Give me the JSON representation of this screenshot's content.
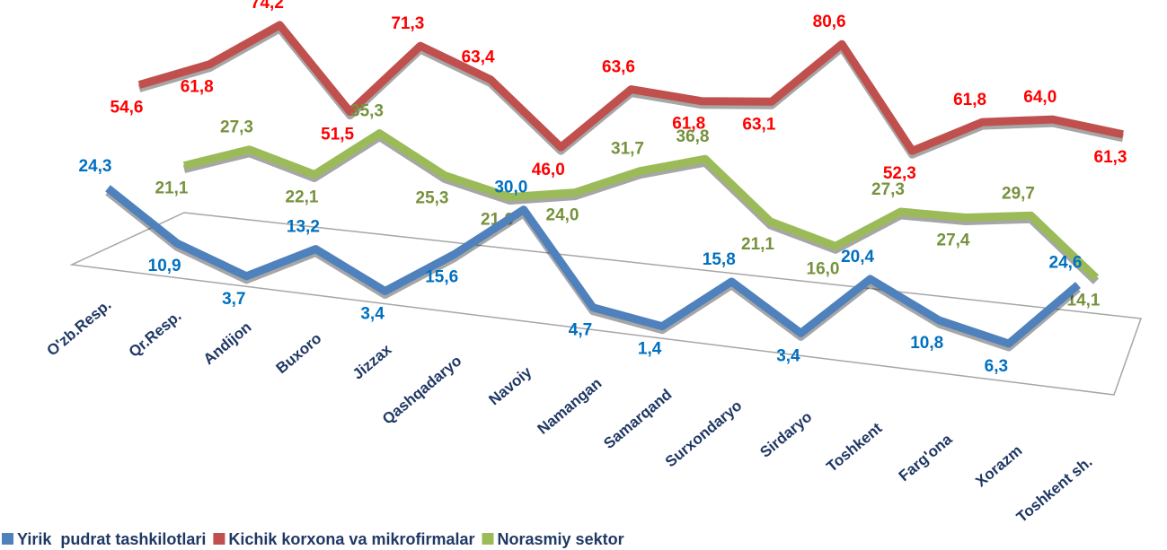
{
  "chart_data": {
    "type": "line",
    "categories": [
      "O'zb.Resp.",
      "Qr.Resp.",
      "Andijon",
      "Buxoro",
      "Jizzax",
      "Qashqadaryo",
      "Navoiy",
      "Namangan",
      "Samarqand",
      "Surxondaryo",
      "Sirdaryo",
      "Toshkent",
      "Farg'ona",
      "Xorazm",
      "Toshkent sh."
    ],
    "series": [
      {
        "name": "Yirik  pudrat tashkilotlari",
        "color": "#4f81bd",
        "label_color": "#0070c0",
        "values": [
          24.3,
          10.9,
          3.7,
          13.2,
          3.4,
          15.6,
          30.0,
          4.7,
          1.4,
          15.8,
          3.4,
          20.4,
          10.8,
          6.3,
          24.6
        ],
        "value_labels": [
          "24,3",
          "10,9",
          "3,7",
          "13,2",
          "3,4",
          "15,6",
          "30,0",
          "4,7",
          "1,4",
          "15,8",
          "3,4",
          "20,4",
          "10,8",
          "6,3",
          "24,6"
        ]
      },
      {
        "name": "Kichik korxona va mikrofirmalar",
        "color": "#c0504d",
        "label_color": "#ff0000",
        "values": [
          54.6,
          61.8,
          74.2,
          51.5,
          71.3,
          63.4,
          46.0,
          63.6,
          61.8,
          63.1,
          80.6,
          52.3,
          61.8,
          64.0,
          61.3
        ],
        "value_labels": [
          "54,6",
          "61,8",
          "74,2",
          "51,5",
          "71,3",
          "63,4",
          "46,0",
          "63,6",
          "61,8",
          "63,1",
          "80,6",
          "52,3",
          "61,8",
          "64,0",
          "61,3"
        ]
      },
      {
        "name": "Norasmiy sektor",
        "color": "#9bbb59",
        "label_color": "#76923c",
        "values": [
          21.1,
          27.3,
          22.1,
          35.3,
          25.3,
          21.0,
          24.0,
          31.7,
          36.8,
          21.1,
          16.0,
          27.3,
          27.4,
          29.7,
          14.1
        ],
        "value_labels": [
          "21,1",
          "27,3",
          "22,1",
          "35,3",
          "25,3",
          "21,0",
          "24,0",
          "31,7",
          "36,8",
          "21,1",
          "16,0",
          "27,3",
          "27,4",
          "29,7",
          "14,1"
        ]
      }
    ]
  }
}
